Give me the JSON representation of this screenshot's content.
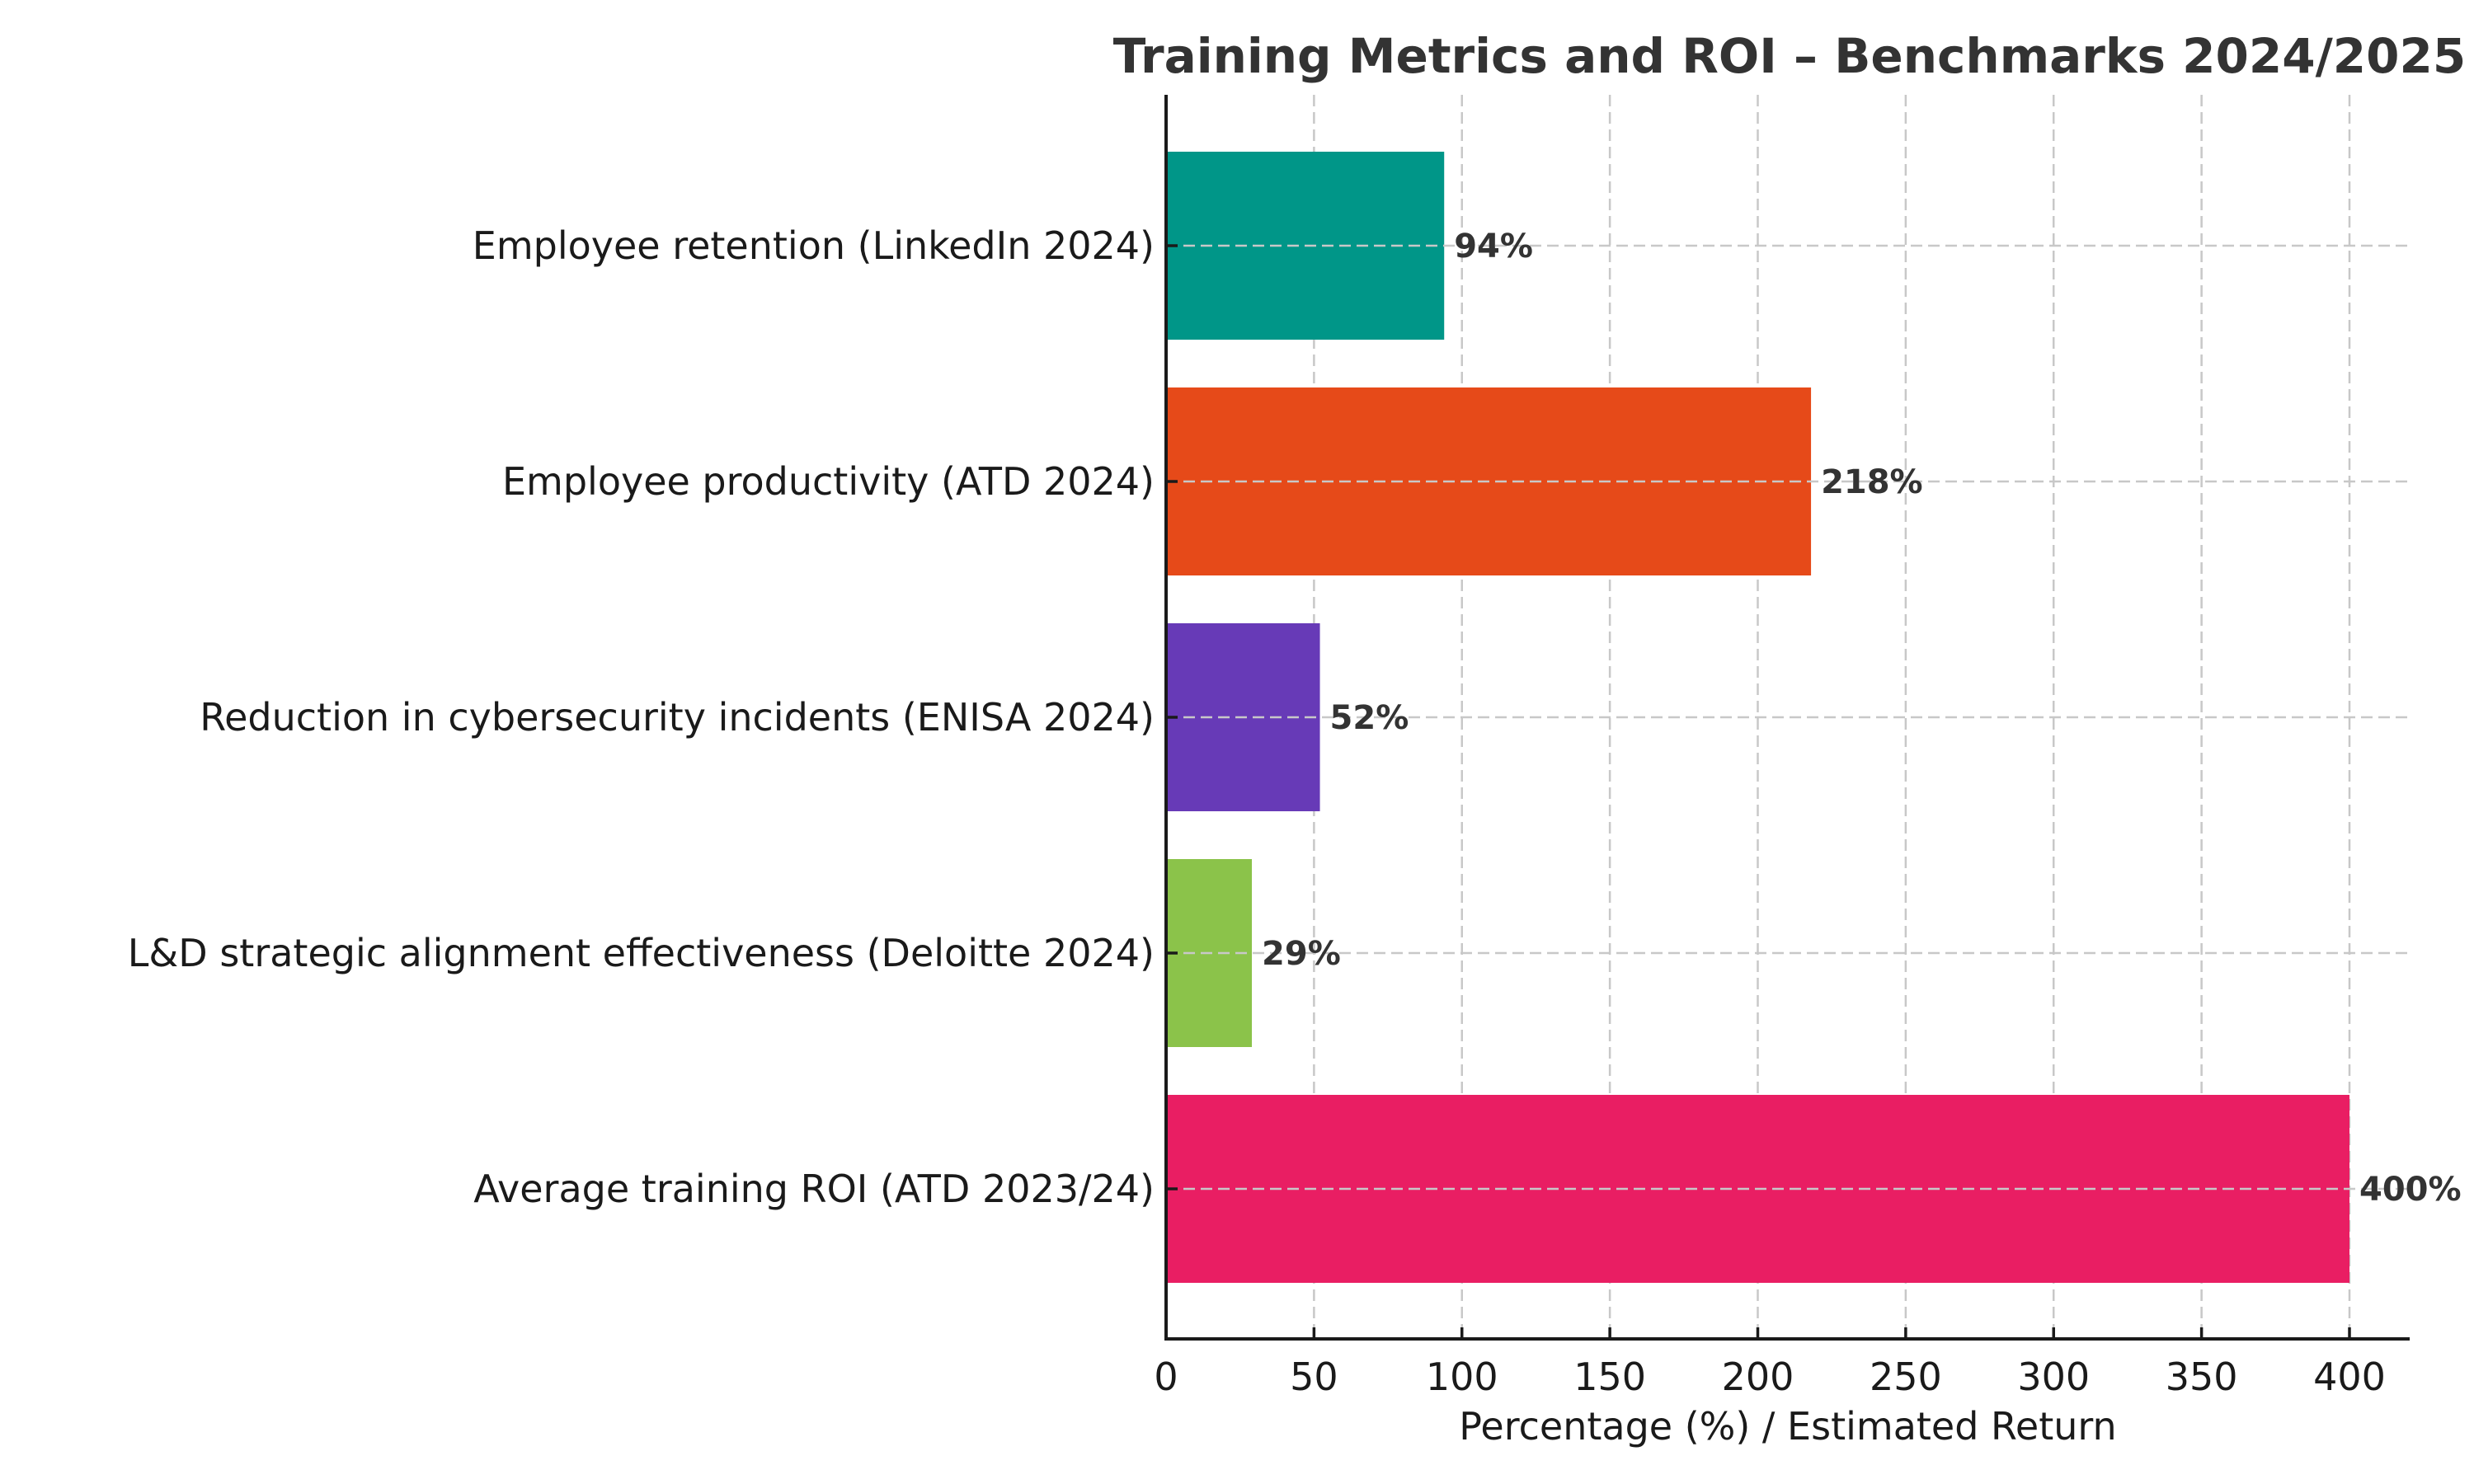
{
  "chart_data": {
    "type": "bar",
    "orientation": "horizontal",
    "title": "Training Metrics and ROI – Benchmarks 2024/2025",
    "xlabel": "Percentage (%) / Estimated Return",
    "ylabel": "",
    "xlim": [
      0,
      420
    ],
    "xticks": [
      0,
      50,
      100,
      150,
      200,
      250,
      300,
      350,
      400
    ],
    "grid": true,
    "legend": "none",
    "categories": [
      "Employee retention (LinkedIn 2024)",
      "Employee productivity (ATD 2024)",
      "Reduction in cybersecurity incidents (ENISA 2024)",
      "L&D strategic alignment effectiveness (Deloitte 2024)",
      "Average training ROI (ATD 2023/24)"
    ],
    "values": [
      94,
      218,
      52,
      29,
      400
    ],
    "data_labels": [
      "94%",
      "218%",
      "52%",
      "29%",
      "400%"
    ],
    "colors": [
      "#009688",
      "#E64A19",
      "#673AB7",
      "#8BC34A",
      "#E91E63"
    ]
  }
}
